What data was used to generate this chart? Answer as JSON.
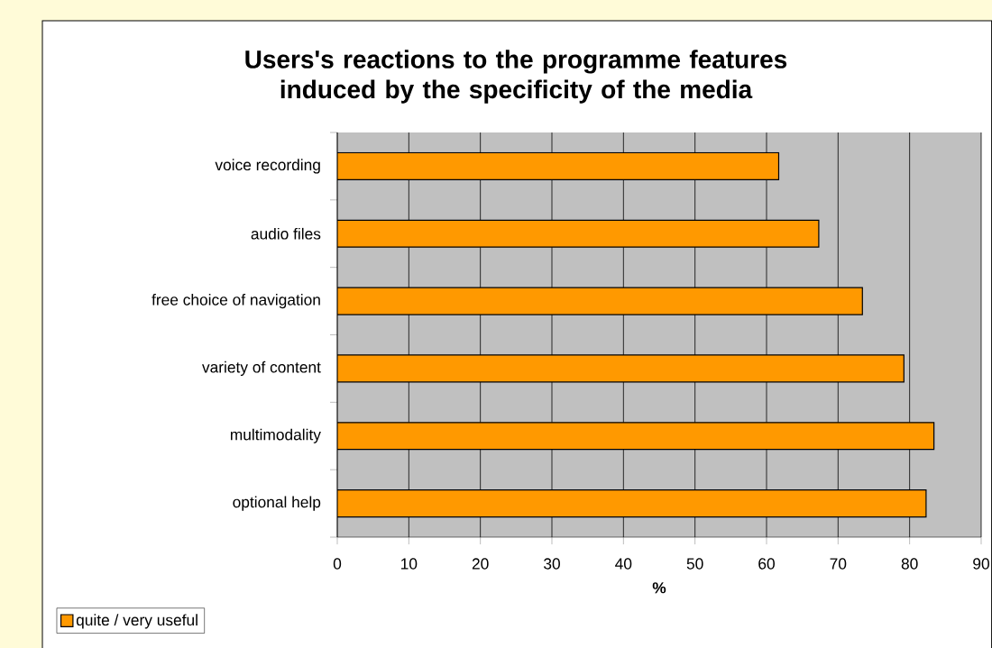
{
  "chart_data": {
    "type": "bar",
    "orientation": "horizontal",
    "title": "Users's reactions to the programme features\ninduced by the specificity of the media",
    "xlabel": "%",
    "categories": [
      "voice recording",
      "audio files",
      "free choice of navigation",
      "variety of content",
      "multimodality",
      "optional help"
    ],
    "series": [
      {
        "name": "quite / very useful",
        "color": "#ff9900",
        "values": [
          61.7,
          67.3,
          73.4,
          79.2,
          83.4,
          82.3
        ]
      }
    ],
    "xlim": [
      0,
      90
    ],
    "xticks": [
      0,
      10,
      20,
      30,
      40,
      50,
      60,
      70,
      80,
      90
    ],
    "grid": "x",
    "legend": "bottom left"
  }
}
